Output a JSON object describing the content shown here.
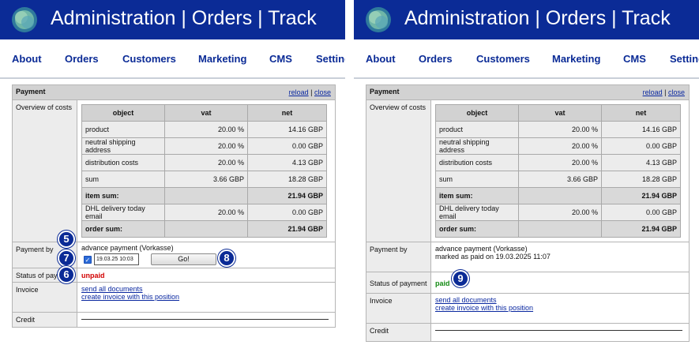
{
  "header": {
    "title": "Administration | Orders | Track"
  },
  "nav": [
    "About",
    "Orders",
    "Customers",
    "Marketing",
    "CMS",
    "Settings"
  ],
  "panel": {
    "title": "Payment",
    "reload": "reload",
    "separator": "|",
    "close": "close",
    "overview_label": "Overview of costs",
    "payment_by_label": "Payment by",
    "status_label": "Status of payment",
    "invoice_label": "Invoice",
    "credit_label": "Credit"
  },
  "costs": {
    "headers": [
      "object",
      "vat",
      "net"
    ],
    "rows": [
      {
        "object": "product",
        "vat": "20.00 %",
        "net": "14.16 GBP"
      },
      {
        "object": "neutral shipping address",
        "vat": "20.00 %",
        "net": "0.00 GBP"
      },
      {
        "object": "distribution costs",
        "vat": "20.00 %",
        "net": "4.13 GBP"
      },
      {
        "object": "sum",
        "vat": "3.66 GBP",
        "net": "18.28 GBP"
      },
      {
        "object": "item sum:",
        "vat": "",
        "net": "21.94 GBP"
      },
      {
        "object": "DHL delivery today email",
        "vat": "20.00 %",
        "net": "0.00 GBP"
      },
      {
        "object": "order sum:",
        "vat": "",
        "net": "21.94 GBP"
      }
    ]
  },
  "left": {
    "payment_method": "advance payment (Vorkasse)",
    "date_value": "19.03.25 10:03",
    "go_label": "Go!",
    "status": "unpaid",
    "status_label_visible": "Status of paym"
  },
  "right": {
    "payment_method": "advance payment (Vorkasse)",
    "marked_text": "marked as paid on 19.03.2025 11:07",
    "status": "paid"
  },
  "invoice_links": [
    "send all documents",
    "create invoice with this position"
  ],
  "badges": {
    "b5": "5",
    "b6": "6",
    "b7": "7",
    "b8": "8",
    "b9": "9"
  },
  "colors": {
    "header_blue": "#0b2b96",
    "unpaid": "#d20000",
    "paid": "#138a13"
  }
}
